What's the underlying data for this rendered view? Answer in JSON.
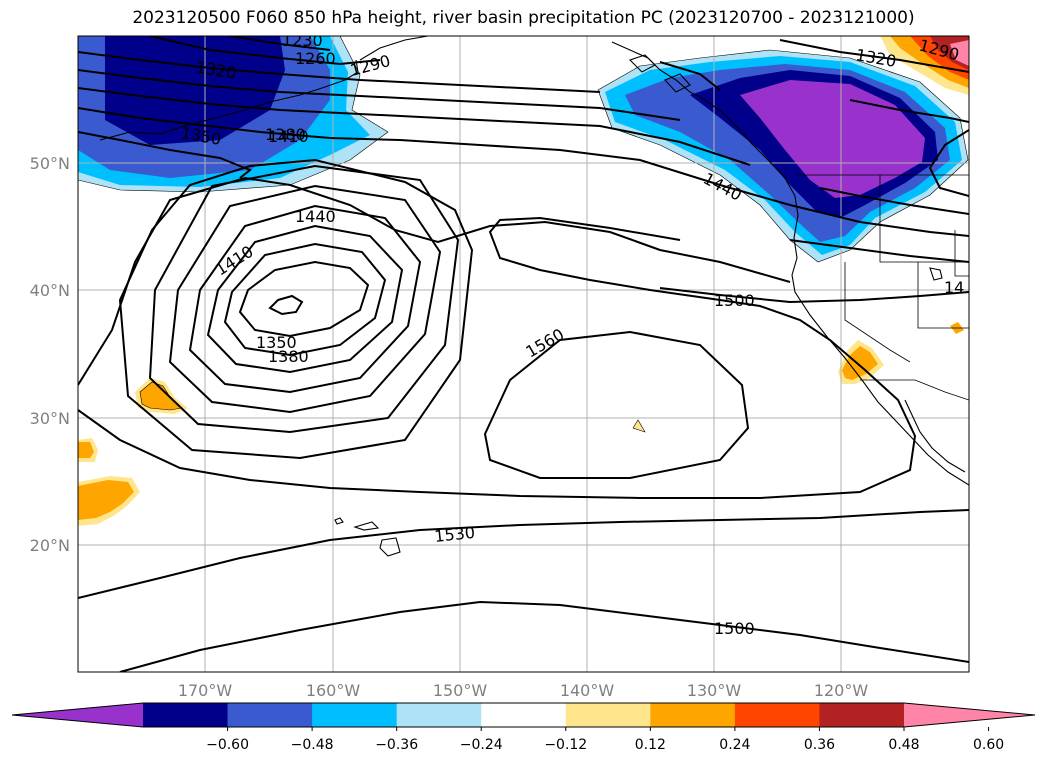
{
  "title": "2023120500 F060 850 hPa height, river basin precipitation PC (2023120700 - 2023121000)",
  "lon_ticks": [
    "170°W",
    "160°W",
    "150°W",
    "140°W",
    "130°W",
    "120°W"
  ],
  "lat_ticks": [
    "50°N",
    "40°N",
    "30°N",
    "20°N"
  ],
  "contour_labels": [
    "1230",
    "1260",
    "1290",
    "1320",
    "1350",
    "1380",
    "1410",
    "1440",
    "1350",
    "1380",
    "1410",
    "1440",
    "1500",
    "1560",
    "1530",
    "1500",
    "1320",
    "1290",
    "14"
  ],
  "colorbar": {
    "ticks": [
      "−0.60",
      "−0.48",
      "−0.36",
      "−0.24",
      "−0.12",
      "0.12",
      "0.24",
      "0.36",
      "0.48",
      "0.60"
    ],
    "colors": [
      "#9932cc",
      "#00008b",
      "#3a5bd0",
      "#00bfff",
      "#ade2f7",
      "#ffffff",
      "#ffe68c",
      "#ffa500",
      "#ff4500",
      "#b22222",
      "#ff85a8"
    ],
    "extend": "both"
  }
}
